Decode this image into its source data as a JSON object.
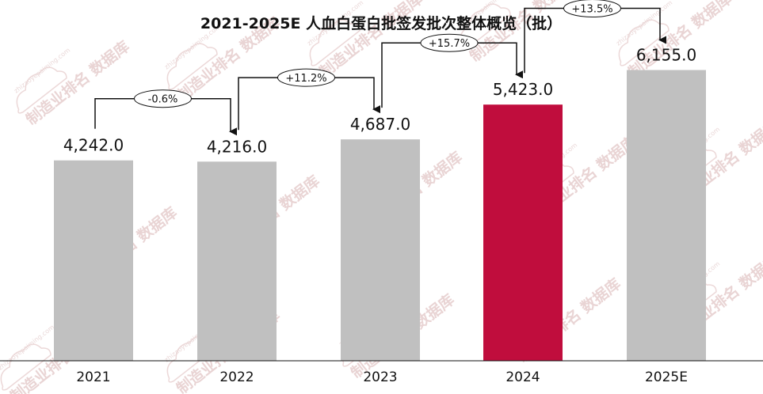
{
  "chart_data": {
    "type": "bar",
    "title": "2021-2025E 人血白蛋白批签发批次整体概览（批）",
    "categories": [
      "2021",
      "2022",
      "2023",
      "2024",
      "2025E"
    ],
    "values": [
      4242.0,
      4216.0,
      4687.0,
      5423.0,
      6155.0
    ],
    "value_labels": [
      "4,242.0",
      "4,216.0",
      "4,687.0",
      "5,423.0",
      "6,155.0"
    ],
    "growth_labels": [
      "-0.6%",
      "+11.2%",
      "+15.7%",
      "+13.5%"
    ],
    "highlight_index": 3,
    "ylim": [
      0,
      6800
    ],
    "grid": false,
    "legend": "none",
    "colors": {
      "bar": "#c0c0c0",
      "highlight": "#c00d3d",
      "text": "#111111",
      "arrow": "#111111"
    }
  },
  "watermark": {
    "text": "制造业排名 数据库",
    "url": "zhizaoyepaiming.com"
  }
}
